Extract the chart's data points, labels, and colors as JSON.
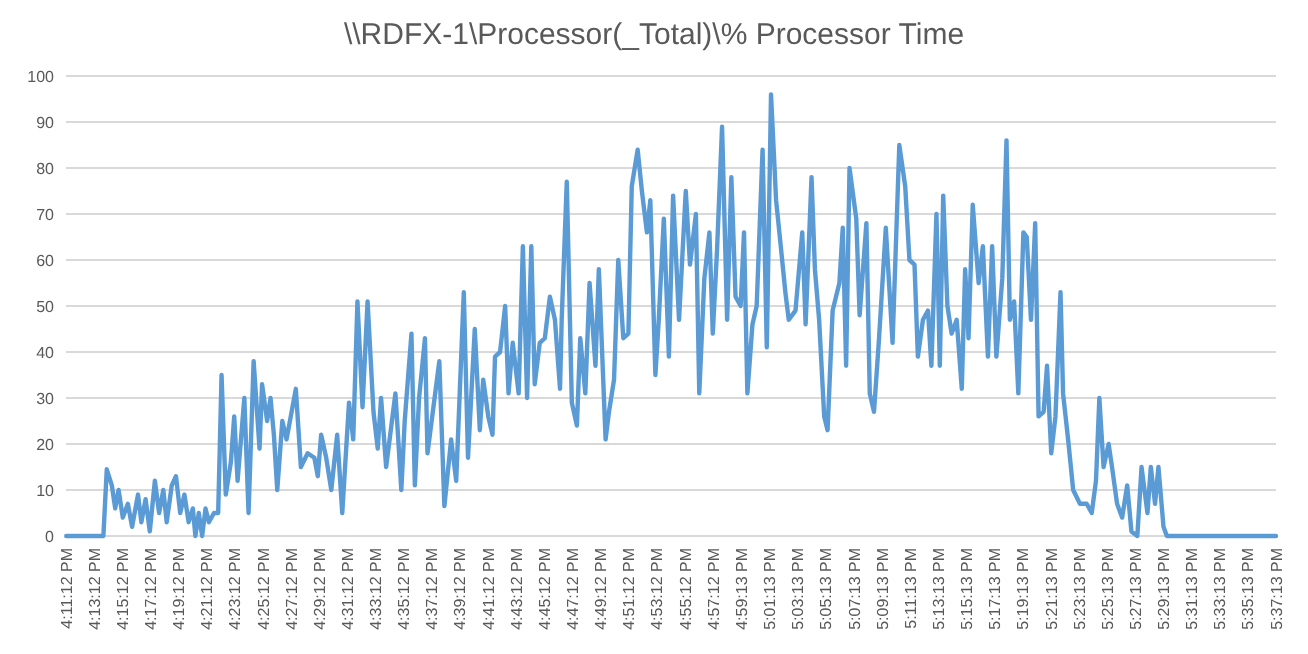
{
  "chart_data": {
    "type": "line",
    "title": "\\\\RDFX-1\\Processor(_Total)\\% Processor Time",
    "xlim": [
      16.1867,
      17.6203
    ],
    "xticks": [
      {
        "value": 16.1867,
        "label": "4:11:12 PM"
      },
      {
        "value": 16.22,
        "label": "4:13:12 PM"
      },
      {
        "value": 16.2533,
        "label": "4:15:12 PM"
      },
      {
        "value": 16.2867,
        "label": "4:17:12 PM"
      },
      {
        "value": 16.32,
        "label": "4:19:12 PM"
      },
      {
        "value": 16.3533,
        "label": "4:21:12 PM"
      },
      {
        "value": 16.3867,
        "label": "4:23:12 PM"
      },
      {
        "value": 16.42,
        "label": "4:25:12 PM"
      },
      {
        "value": 16.4533,
        "label": "4:27:12 PM"
      },
      {
        "value": 16.4867,
        "label": "4:29:12 PM"
      },
      {
        "value": 16.52,
        "label": "4:31:12 PM"
      },
      {
        "value": 16.5533,
        "label": "4:33:12 PM"
      },
      {
        "value": 16.5867,
        "label": "4:35:12 PM"
      },
      {
        "value": 16.62,
        "label": "4:37:12 PM"
      },
      {
        "value": 16.6533,
        "label": "4:39:12 PM"
      },
      {
        "value": 16.6867,
        "label": "4:41:12 PM"
      },
      {
        "value": 16.72,
        "label": "4:43:12 PM"
      },
      {
        "value": 16.7533,
        "label": "4:45:12 PM"
      },
      {
        "value": 16.7867,
        "label": "4:47:12 PM"
      },
      {
        "value": 16.82,
        "label": "4:49:12 PM"
      },
      {
        "value": 16.8533,
        "label": "4:51:12 PM"
      },
      {
        "value": 16.8867,
        "label": "4:53:12 PM"
      },
      {
        "value": 16.92,
        "label": "4:55:12 PM"
      },
      {
        "value": 16.9533,
        "label": "4:57:12 PM"
      },
      {
        "value": 16.9869,
        "label": "4:59:13 PM"
      },
      {
        "value": 17.0203,
        "label": "5:01:13 PM"
      },
      {
        "value": 17.0536,
        "label": "5:03:13 PM"
      },
      {
        "value": 17.0869,
        "label": "5:05:13 PM"
      },
      {
        "value": 17.1203,
        "label": "5:07:13 PM"
      },
      {
        "value": 17.1536,
        "label": "5:09:13 PM"
      },
      {
        "value": 17.1869,
        "label": "5:11:13 PM"
      },
      {
        "value": 17.2203,
        "label": "5:13:13 PM"
      },
      {
        "value": 17.2536,
        "label": "5:15:13 PM"
      },
      {
        "value": 17.2869,
        "label": "5:17:13 PM"
      },
      {
        "value": 17.3203,
        "label": "5:19:13 PM"
      },
      {
        "value": 17.3536,
        "label": "5:21:13 PM"
      },
      {
        "value": 17.3869,
        "label": "5:23:13 PM"
      },
      {
        "value": 17.4203,
        "label": "5:25:13 PM"
      },
      {
        "value": 17.4536,
        "label": "5:27:13 PM"
      },
      {
        "value": 17.4869,
        "label": "5:29:13 PM"
      },
      {
        "value": 17.5203,
        "label": "5:31:13 PM"
      },
      {
        "value": 17.5536,
        "label": "5:33:13 PM"
      },
      {
        "value": 17.5869,
        "label": "5:35:13 PM"
      },
      {
        "value": 17.6203,
        "label": "5:37:13 PM"
      }
    ],
    "ylim": [
      0,
      100
    ],
    "yticks": [
      0,
      10,
      20,
      30,
      40,
      50,
      60,
      70,
      80,
      90,
      100
    ],
    "grid": "y",
    "line_style": "solid",
    "series": [
      {
        "color": "#5b9bd5",
        "x": [
          16.187,
          16.231,
          16.235,
          16.241,
          16.245,
          16.249,
          16.254,
          16.26,
          16.265,
          16.272,
          16.276,
          16.281,
          16.286,
          16.292,
          16.297,
          16.302,
          16.306,
          16.312,
          16.317,
          16.322,
          16.327,
          16.332,
          16.337,
          16.34,
          16.344,
          16.348,
          16.352,
          16.356,
          16.362,
          16.367,
          16.371,
          16.376,
          16.382,
          16.386,
          16.39,
          16.398,
          16.403,
          16.409,
          16.416,
          16.419,
          16.425,
          16.429,
          16.433,
          16.437,
          16.443,
          16.448,
          16.459,
          16.465,
          16.473,
          16.481,
          16.485,
          16.489,
          16.495,
          16.501,
          16.508,
          16.514,
          16.522,
          16.527,
          16.532,
          16.538,
          16.544,
          16.551,
          16.556,
          16.56,
          16.566,
          16.577,
          16.584,
          16.588,
          16.596,
          16.6,
          16.605,
          16.612,
          16.615,
          16.629,
          16.635,
          16.643,
          16.649,
          16.658,
          16.663,
          16.671,
          16.677,
          16.681,
          16.687,
          16.692,
          16.695,
          16.701,
          16.707,
          16.711,
          16.716,
          16.723,
          16.728,
          16.733,
          16.738,
          16.742,
          16.748,
          16.754,
          16.76,
          16.766,
          16.772,
          16.774,
          16.78,
          16.786,
          16.792,
          16.796,
          16.802,
          16.807,
          16.814,
          16.818,
          16.826,
          16.83,
          16.836,
          16.841,
          16.847,
          16.853,
          16.857,
          16.864,
          16.869,
          16.875,
          16.879,
          16.885,
          16.889,
          16.895,
          16.901,
          16.906,
          16.913,
          16.921,
          16.926,
          16.933,
          16.937,
          16.943,
          16.949,
          16.953,
          16.958,
          16.964,
          16.97,
          16.975,
          16.98,
          16.986,
          16.99,
          16.994,
          17.0,
          17.005,
          17.012,
          17.017,
          17.022,
          17.028,
          17.033,
          17.039,
          17.043,
          17.051,
          17.059,
          17.063,
          17.07,
          17.074,
          17.079,
          17.085,
          17.089,
          17.095,
          17.103,
          17.107,
          17.111,
          17.115,
          17.123,
          17.127,
          17.135,
          17.139,
          17.144,
          17.15,
          17.158,
          17.166,
          17.174,
          17.181,
          17.186,
          17.192,
          17.196,
          17.202,
          17.208,
          17.212,
          17.218,
          17.222,
          17.226,
          17.231,
          17.236,
          17.242,
          17.248,
          17.252,
          17.256,
          17.261,
          17.268,
          17.273,
          17.279,
          17.284,
          17.289,
          17.296,
          17.301,
          17.305,
          17.31,
          17.315,
          17.321,
          17.325,
          17.33,
          17.335,
          17.339,
          17.345,
          17.349,
          17.354,
          17.359,
          17.365,
          17.368,
          17.374,
          17.38,
          17.388,
          17.396,
          17.402,
          17.407,
          17.411,
          17.416,
          17.422,
          17.426,
          17.432,
          17.438,
          17.444,
          17.449,
          17.456,
          17.461,
          17.468,
          17.472,
          17.477,
          17.481,
          17.487,
          17.491,
          17.6203
        ],
        "values": [
          0,
          0,
          14.5,
          11,
          6,
          10,
          4,
          7,
          2,
          9,
          3,
          8,
          1,
          12,
          5,
          10,
          3,
          11,
          13,
          5,
          9,
          3,
          6,
          0,
          5,
          0,
          6,
          3,
          5,
          5,
          35,
          9,
          16,
          26,
          12,
          30,
          5,
          38,
          19,
          33,
          25,
          30,
          22,
          10,
          25,
          21,
          32,
          15,
          18,
          17,
          13,
          22,
          17,
          10,
          22,
          5,
          29,
          21,
          51,
          28,
          51,
          27,
          19,
          30,
          15,
          31,
          10,
          25,
          44,
          11,
          30,
          43,
          18,
          38,
          6.5,
          21,
          12,
          53,
          17,
          45,
          23,
          34,
          26,
          22,
          39,
          40,
          50,
          31,
          42,
          31,
          63,
          30,
          63,
          33,
          42,
          43,
          52,
          47,
          32,
          47,
          77,
          29,
          24,
          43,
          31,
          55,
          37,
          58,
          21,
          27,
          34,
          60,
          43,
          44,
          76,
          84,
          75,
          66,
          73,
          35,
          47,
          69,
          39,
          74,
          47,
          75,
          59,
          70,
          31,
          56,
          66,
          44,
          62,
          89,
          47,
          78,
          52,
          50,
          66,
          31,
          46,
          50,
          84,
          41,
          96,
          73,
          64,
          53,
          47,
          49,
          66,
          46,
          78,
          58,
          47,
          26,
          23,
          49,
          55,
          67,
          37,
          80,
          69,
          48,
          68,
          31,
          27,
          43,
          67,
          42,
          85,
          76,
          60,
          59,
          39,
          47,
          49,
          37,
          70,
          37,
          74,
          50,
          44,
          47,
          32,
          58,
          43,
          72,
          55,
          63,
          39,
          63,
          39,
          56,
          86,
          47,
          51,
          31,
          66,
          65,
          47,
          68,
          26,
          27,
          37,
          18,
          26,
          53,
          31,
          21,
          10,
          7,
          7,
          5,
          12,
          30,
          15,
          20,
          15,
          7,
          4,
          11,
          1,
          0,
          15,
          5,
          15,
          7,
          15,
          2,
          0,
          0
        ]
      }
    ]
  }
}
